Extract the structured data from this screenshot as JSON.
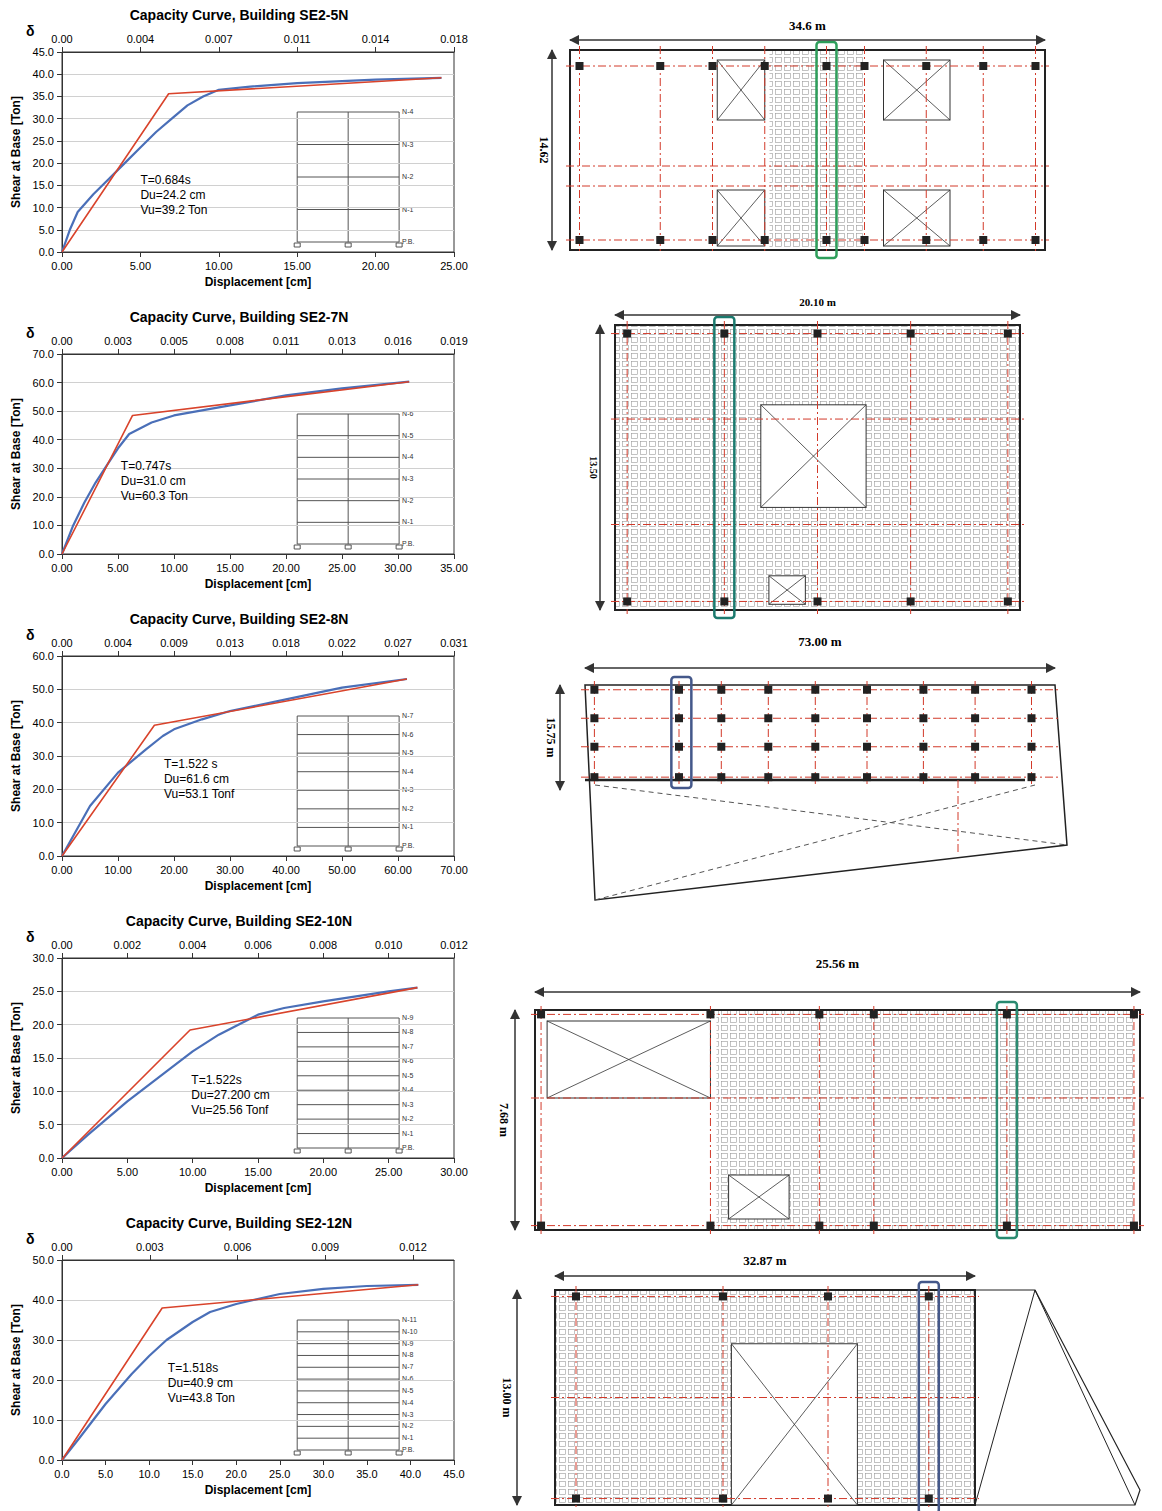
{
  "chart_data": [
    {
      "type": "line",
      "title": "Capacity Curve, Building SE2-5N",
      "xlabel": "Displacement [cm]",
      "ylabel": "Shear at Base [Ton]",
      "x2_label": "δ",
      "xlim": [
        0,
        25
      ],
      "xticks": [
        {
          "value": 0,
          "label": "0.00"
        },
        {
          "value": 5,
          "label": "5.00"
        },
        {
          "value": 10,
          "label": "10.00"
        },
        {
          "value": 15,
          "label": "15.00"
        },
        {
          "value": 20,
          "label": "20.00"
        },
        {
          "value": 25,
          "label": "25.00"
        }
      ],
      "ylim": [
        0,
        45
      ],
      "yticks": [
        {
          "value": 0,
          "label": "0.0"
        },
        {
          "value": 5,
          "label": "5.0"
        },
        {
          "value": 10,
          "label": "10.0"
        },
        {
          "value": 15,
          "label": "15.0"
        },
        {
          "value": 20,
          "label": "20.0"
        },
        {
          "value": 25,
          "label": "25.0"
        },
        {
          "value": 30,
          "label": "30.0"
        },
        {
          "value": 35,
          "label": "35.0"
        },
        {
          "value": 40,
          "label": "40.0"
        },
        {
          "value": 45,
          "label": "45.0"
        }
      ],
      "x2lim": [
        0,
        0.018
      ],
      "x2ticks": [
        {
          "value": 0,
          "label": "0.00"
        },
        {
          "value": 0.0036,
          "label": "0.004"
        },
        {
          "value": 0.0072,
          "label": "0.007"
        },
        {
          "value": 0.0108,
          "label": "0.011"
        },
        {
          "value": 0.0144,
          "label": "0.014"
        },
        0.018
      ],
      "grid": true,
      "series": [
        {
          "color": "#4a6fb8",
          "x": [
            0,
            0.5,
            1,
            2,
            3,
            4,
            5,
            6,
            7,
            8,
            9,
            10,
            12,
            15,
            20,
            24.2
          ],
          "values": [
            0,
            5,
            9,
            13,
            16.5,
            20,
            23.5,
            27,
            30,
            33,
            35,
            36.5,
            37.2,
            38,
            38.8,
            39.2
          ]
        },
        {
          "color": "#d9432b",
          "x": [
            0,
            6.8,
            24.2
          ],
          "values": [
            0,
            35.6,
            39.2
          ]
        }
      ],
      "annotations": [
        "T=0.684s",
        "Du=24.2 cm",
        "Vu=39.2 Ton"
      ],
      "inset_levels": [
        "N-4",
        "N-3",
        "N-2",
        "N-1",
        "P.B."
      ]
    },
    {
      "type": "line",
      "title": "Capacity Curve, Building SE2-7N",
      "xlabel": "Displacement [cm]",
      "ylabel": "Shear at Base [Ton]",
      "x2_label": "δ",
      "xlim": [
        0,
        35
      ],
      "xticks": [
        {
          "value": 0,
          "label": "0.00"
        },
        {
          "value": 5,
          "label": "5.00"
        },
        {
          "value": 10,
          "label": "10.00"
        },
        {
          "value": 15,
          "label": "15.00"
        },
        {
          "value": 20,
          "label": "20.00"
        },
        {
          "value": 25,
          "label": "25.00"
        },
        {
          "value": 30,
          "label": "30.00"
        },
        {
          "value": 35,
          "label": "35.00"
        }
      ],
      "ylim": [
        0,
        70
      ],
      "yticks": [
        {
          "value": 0,
          "label": "0.0"
        },
        {
          "value": 10,
          "label": "10.0"
        },
        {
          "value": 20,
          "label": "20.0"
        },
        {
          "value": 30,
          "label": "30.0"
        },
        {
          "value": 40,
          "label": "40.0"
        },
        {
          "value": 50,
          "label": "50.0"
        },
        {
          "value": 60,
          "label": "60.0"
        },
        {
          "value": 70,
          "label": "70.0"
        }
      ],
      "x2lim": [
        0,
        0.01862
      ],
      "x2ticks": [
        {
          "value": 0,
          "label": "0.00"
        },
        {
          "value": 0.00266,
          "label": "0.003"
        },
        {
          "value": 0.00532,
          "label": "0.005"
        },
        {
          "value": 0.00798,
          "label": "0.008"
        },
        {
          "value": 0.01064,
          "label": "0.011"
        },
        {
          "value": 0.0133,
          "label": "0.013"
        },
        {
          "value": 0.01596,
          "label": "0.016"
        },
        {
          "value": 0.01862,
          "label": "0.019"
        }
      ],
      "grid": true,
      "series": [
        {
          "color": "#4a6fb8",
          "x": [
            0,
            1,
            2,
            3,
            4,
            5,
            6,
            7,
            8,
            10,
            15,
            20,
            25,
            31
          ],
          "values": [
            0,
            10,
            18,
            25,
            31,
            37,
            42,
            44,
            46,
            48.5,
            52,
            55.5,
            58,
            60.3
          ]
        },
        {
          "color": "#d9432b",
          "x": [
            0,
            6.3,
            31
          ],
          "values": [
            0,
            48.5,
            60.3
          ]
        }
      ],
      "annotations": [
        "T=0.747s",
        "Du=31.0 cm",
        "Vu=60.3 Ton"
      ],
      "inset_levels": [
        "N-6",
        "N-5",
        "N-4",
        "N-3",
        "N-2",
        "N-1",
        "P.B."
      ]
    },
    {
      "type": "line",
      "title": "Capacity Curve, Building SE2-8N",
      "xlabel": "Displacement [cm]",
      "ylabel": "Shear at Base [Ton]",
      "x2_label": "δ",
      "xlim": [
        0,
        70
      ],
      "xticks": [
        {
          "value": 0,
          "label": "0.00"
        },
        {
          "value": 10,
          "label": "10.00"
        },
        {
          "value": 20,
          "label": "20.00"
        },
        {
          "value": 30,
          "label": "30.00"
        },
        {
          "value": 40,
          "label": "40.00"
        },
        {
          "value": 50,
          "label": "50.00"
        },
        {
          "value": 60,
          "label": "60.00"
        },
        {
          "value": 70,
          "label": "70.00"
        }
      ],
      "ylim": [
        0,
        60
      ],
      "yticks": [
        {
          "value": 0,
          "label": "0.0"
        },
        {
          "value": 10,
          "label": "10.0"
        },
        {
          "value": 20,
          "label": "20.0"
        },
        {
          "value": 30,
          "label": "30.0"
        },
        {
          "value": 40,
          "label": "40.0"
        },
        {
          "value": 50,
          "label": "50.0"
        },
        {
          "value": 60,
          "label": "60.0"
        }
      ],
      "x2lim": [
        0,
        0.03101
      ],
      "x2ticks": [
        {
          "value": 0,
          "label": "0.00"
        },
        {
          "value": 0.00443,
          "label": "0.004"
        },
        {
          "value": 0.00886,
          "label": "0.009"
        },
        {
          "value": 0.01329,
          "label": "0.013"
        },
        {
          "value": 0.01772,
          "label": "0.018"
        },
        {
          "value": 0.02215,
          "label": "0.022"
        },
        {
          "value": 0.02658,
          "label": "0.027"
        },
        {
          "value": 0.03101,
          "label": "0.031"
        }
      ],
      "grid": true,
      "series": [
        {
          "color": "#4a6fb8",
          "x": [
            0,
            2,
            5,
            10,
            15,
            18,
            20,
            25,
            30,
            40,
            50,
            61.6
          ],
          "values": [
            0,
            6,
            15,
            25,
            32,
            36,
            38,
            41,
            43.5,
            47,
            50.5,
            53.1
          ]
        },
        {
          "color": "#d9432b",
          "x": [
            0,
            16.5,
            61.6
          ],
          "values": [
            0,
            39.2,
            53.1
          ]
        }
      ],
      "annotations": [
        "T=1.522 s",
        "Du=61.6 cm",
        "Vu=53.1 Tonf"
      ],
      "inset_levels": [
        "N-7",
        "N-6",
        "N-5",
        "N-4",
        "N-3",
        "N-2",
        "N-1",
        "P.B."
      ]
    },
    {
      "type": "line",
      "title": "Capacity Curve, Building SE2-10N",
      "xlabel": "Displacement [cm]",
      "ylabel": "Shear at Base [Ton]",
      "x2_label": "δ",
      "xlim": [
        0,
        30
      ],
      "xticks": [
        {
          "value": 0,
          "label": "0.00"
        },
        {
          "value": 5,
          "label": "5.00"
        },
        {
          "value": 10,
          "label": "10.00"
        },
        {
          "value": 15,
          "label": "15.00"
        },
        {
          "value": 20,
          "label": "20.00"
        },
        {
          "value": 25,
          "label": "25.00"
        },
        {
          "value": 30,
          "label": "30.00"
        }
      ],
      "ylim": [
        0,
        30
      ],
      "yticks": [
        {
          "value": 0,
          "label": "0.0"
        },
        {
          "value": 5,
          "label": "5.0"
        },
        {
          "value": 10,
          "label": "10.0"
        },
        {
          "value": 15,
          "label": "15.0"
        },
        {
          "value": 20,
          "label": "20.0"
        },
        {
          "value": 25,
          "label": "25.0"
        },
        {
          "value": 30,
          "label": "30.0"
        }
      ],
      "x2lim": [
        0,
        0.012
      ],
      "x2ticks": [
        {
          "value": 0,
          "label": "0.00"
        },
        0.002,
        0.004,
        0.006,
        0.008,
        {
          "value": 0.01,
          "label": "0.010"
        },
        0.012
      ],
      "grid": true,
      "series": [
        {
          "color": "#4a6fb8",
          "x": [
            0,
            2,
            5,
            8,
            10,
            12,
            15,
            17,
            20,
            25,
            27.2
          ],
          "values": [
            0,
            3.5,
            8.5,
            13,
            16,
            18.5,
            21.5,
            22.5,
            23.5,
            25,
            25.56
          ]
        },
        {
          "color": "#d9432b",
          "x": [
            0,
            9.8,
            27.2
          ],
          "values": [
            0,
            19.2,
            25.56
          ]
        }
      ],
      "annotations": [
        "T=1.522s",
        "Du=27.200 cm",
        "Vu=25.56 Tonf"
      ],
      "inset_levels": [
        "N-9",
        "N-8",
        "N-7",
        "N-6",
        "N-5",
        "N-4",
        "N-3",
        "N-2",
        "N-1",
        "P.B."
      ]
    },
    {
      "type": "line",
      "title": "Capacity Curve, Building SE2-12N",
      "xlabel": "Displacement [cm]",
      "ylabel": "Shear at Base [Ton]",
      "x2_label": "δ",
      "xlim": [
        0,
        45
      ],
      "xticks": [
        {
          "value": 0,
          "label": "0.0"
        },
        {
          "value": 5,
          "label": "5.0"
        },
        {
          "value": 10,
          "label": "10.0"
        },
        {
          "value": 15,
          "label": "15.0"
        },
        {
          "value": 20,
          "label": "20.0"
        },
        {
          "value": 25,
          "label": "25.0"
        },
        {
          "value": 30,
          "label": "30.0"
        },
        {
          "value": 35,
          "label": "35.0"
        },
        {
          "value": 40,
          "label": "40.0"
        },
        {
          "value": 45,
          "label": "45.0"
        }
      ],
      "ylim": [
        0,
        50
      ],
      "yticks": [
        {
          "value": 0,
          "label": "0.0"
        },
        {
          "value": 10,
          "label": "10.0"
        },
        {
          "value": 20,
          "label": "20.0"
        },
        {
          "value": 30,
          "label": "30.0"
        },
        {
          "value": 40,
          "label": "40.0"
        },
        {
          "value": 50,
          "label": "50.0"
        }
      ],
      "x2lim": [
        0,
        0.0134
      ],
      "x2ticks": [
        {
          "value": 0,
          "label": "0.00"
        },
        0.003,
        0.006,
        0.009,
        0.012
      ],
      "grid": true,
      "series": [
        {
          "color": "#4a6fb8",
          "x": [
            0,
            2,
            5,
            8,
            10,
            12,
            15,
            17,
            20,
            25,
            30,
            35,
            40.9
          ],
          "values": [
            0,
            5.5,
            14,
            21.5,
            26,
            30,
            34.5,
            37,
            39,
            41.5,
            42.8,
            43.5,
            43.8
          ]
        },
        {
          "color": "#d9432b",
          "x": [
            0,
            11.5,
            40.9
          ],
          "values": [
            0,
            38,
            43.8
          ]
        }
      ],
      "annotations": [
        "T=1.518s",
        "Du=40.9 cm",
        "Vu=43.8 Ton"
      ],
      "inset_levels": [
        "N-11",
        "N-10",
        "N-9",
        "N-8",
        "N-7",
        "N-6",
        "N-5",
        "N-4",
        "N-3",
        "N-2",
        "N-1",
        "P.B."
      ]
    }
  ],
  "plans": [
    {
      "width_label": "34.6 m",
      "depth_label": "14.62"
    },
    {
      "width_label": "20.10 m",
      "depth_label": "13.50"
    },
    {
      "width_label": "73.00 m",
      "depth_label": "15.75 m"
    },
    {
      "width_label": "25.56 m",
      "depth_label": "7.68 m"
    },
    {
      "width_label": "32.87 m",
      "depth_label": "13.00 m"
    }
  ]
}
